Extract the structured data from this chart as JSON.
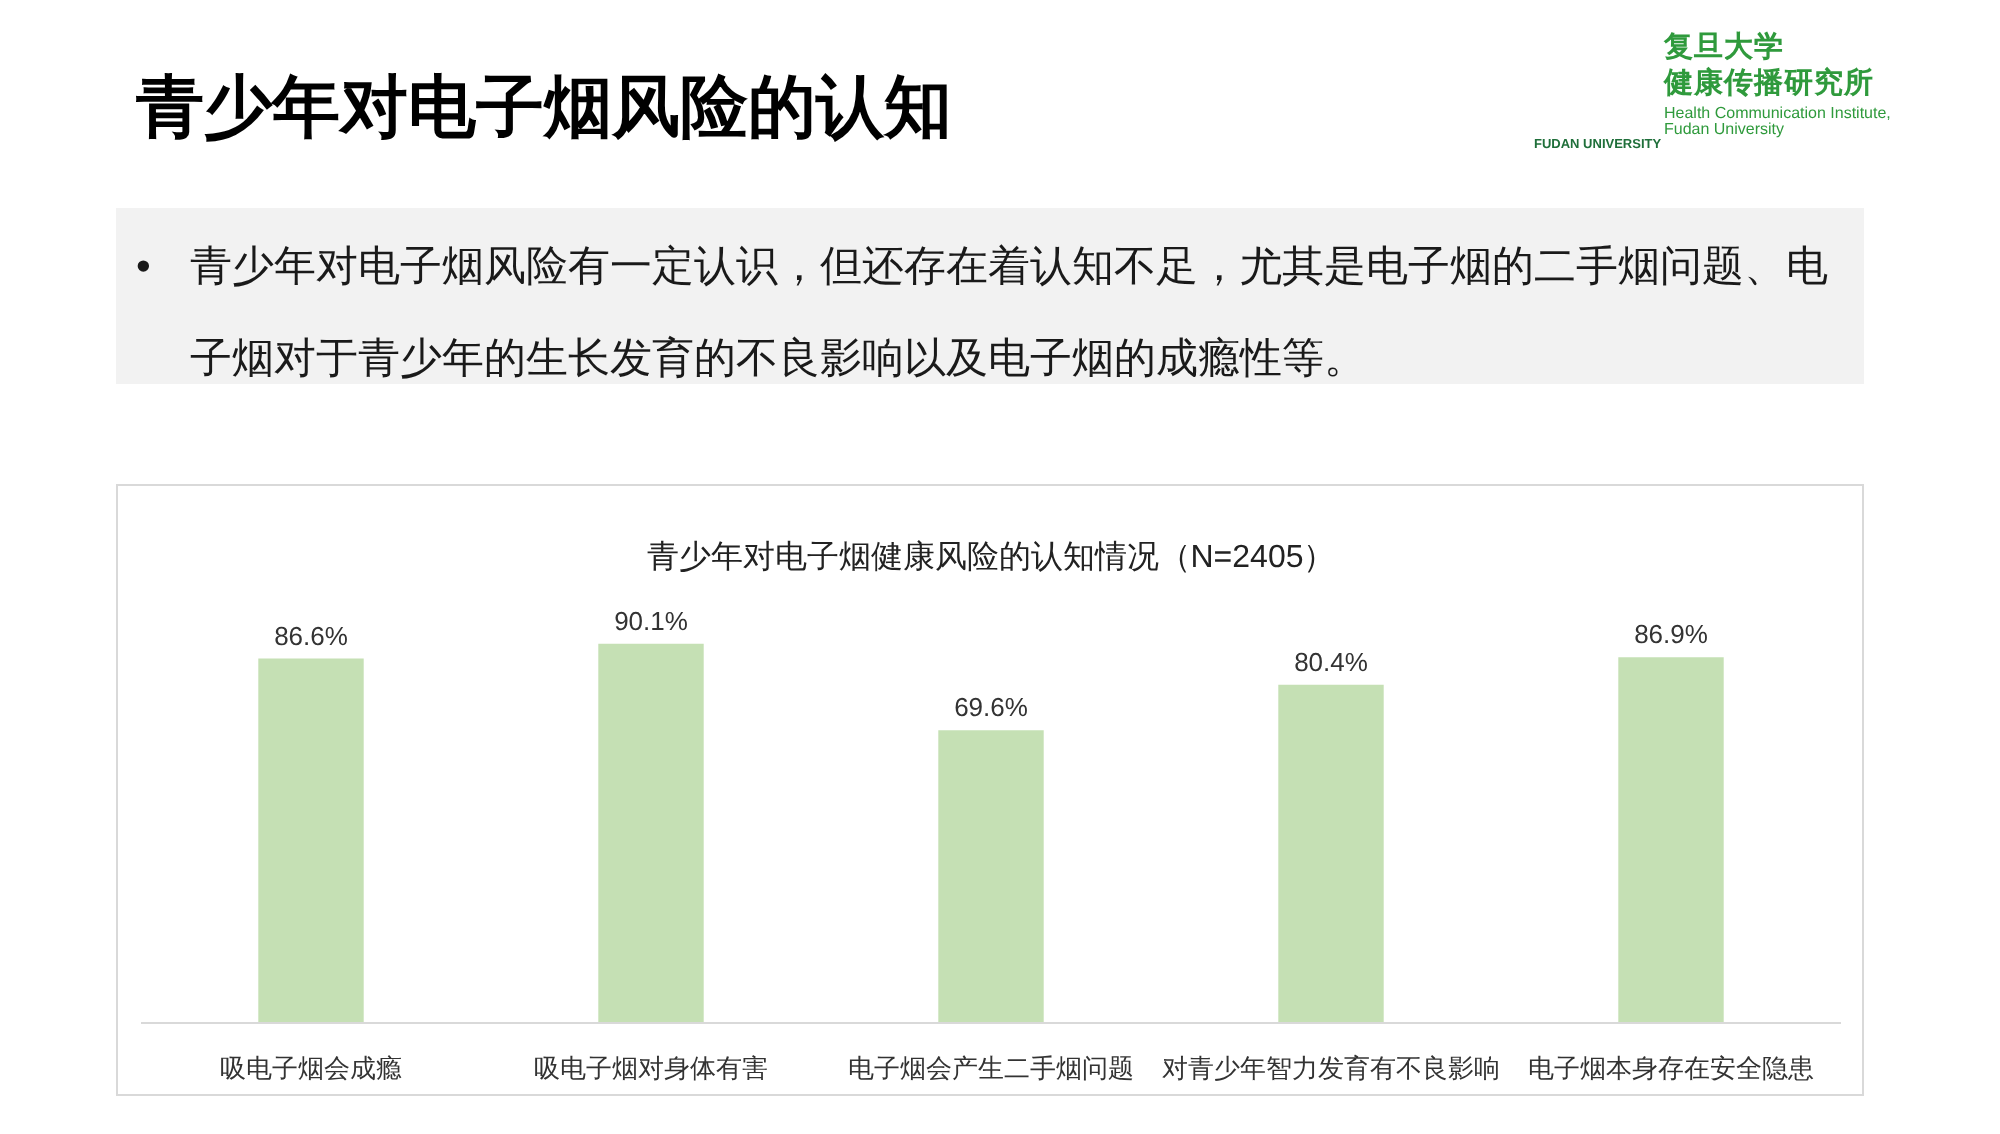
{
  "chart_data": {
    "type": "bar",
    "title": "青少年对电子烟健康风险的认知情况（N=2405）",
    "categories": [
      "吸电子烟会成瘾",
      "吸电子烟对身体有害",
      "电子烟会产生二手烟问题",
      "对青少年智力发育有不良影响",
      "电子烟本身存在安全隐患"
    ],
    "values": [
      86.6,
      90.1,
      69.6,
      80.4,
      86.9
    ],
    "value_labels": [
      "86.6%",
      "90.1%",
      "69.6%",
      "80.4%",
      "86.9%"
    ],
    "color": "#c5e0b4",
    "tick_labels": "x",
    "annotations": [
      "青少年对电子烟风险的认知",
      "•",
      "青少年对电子烟风险有一定认识，但还存在着认知不足，尤其是电子烟的二手烟问题、电子烟对于青少年的生长发育的不良影响以及电子烟的成瘾性等。",
      "复旦大学",
      "健康传播研究所",
      "Health Communication Institute,",
      "Fudan University",
      "FUDAN UNIVERSITY"
    ]
  }
}
